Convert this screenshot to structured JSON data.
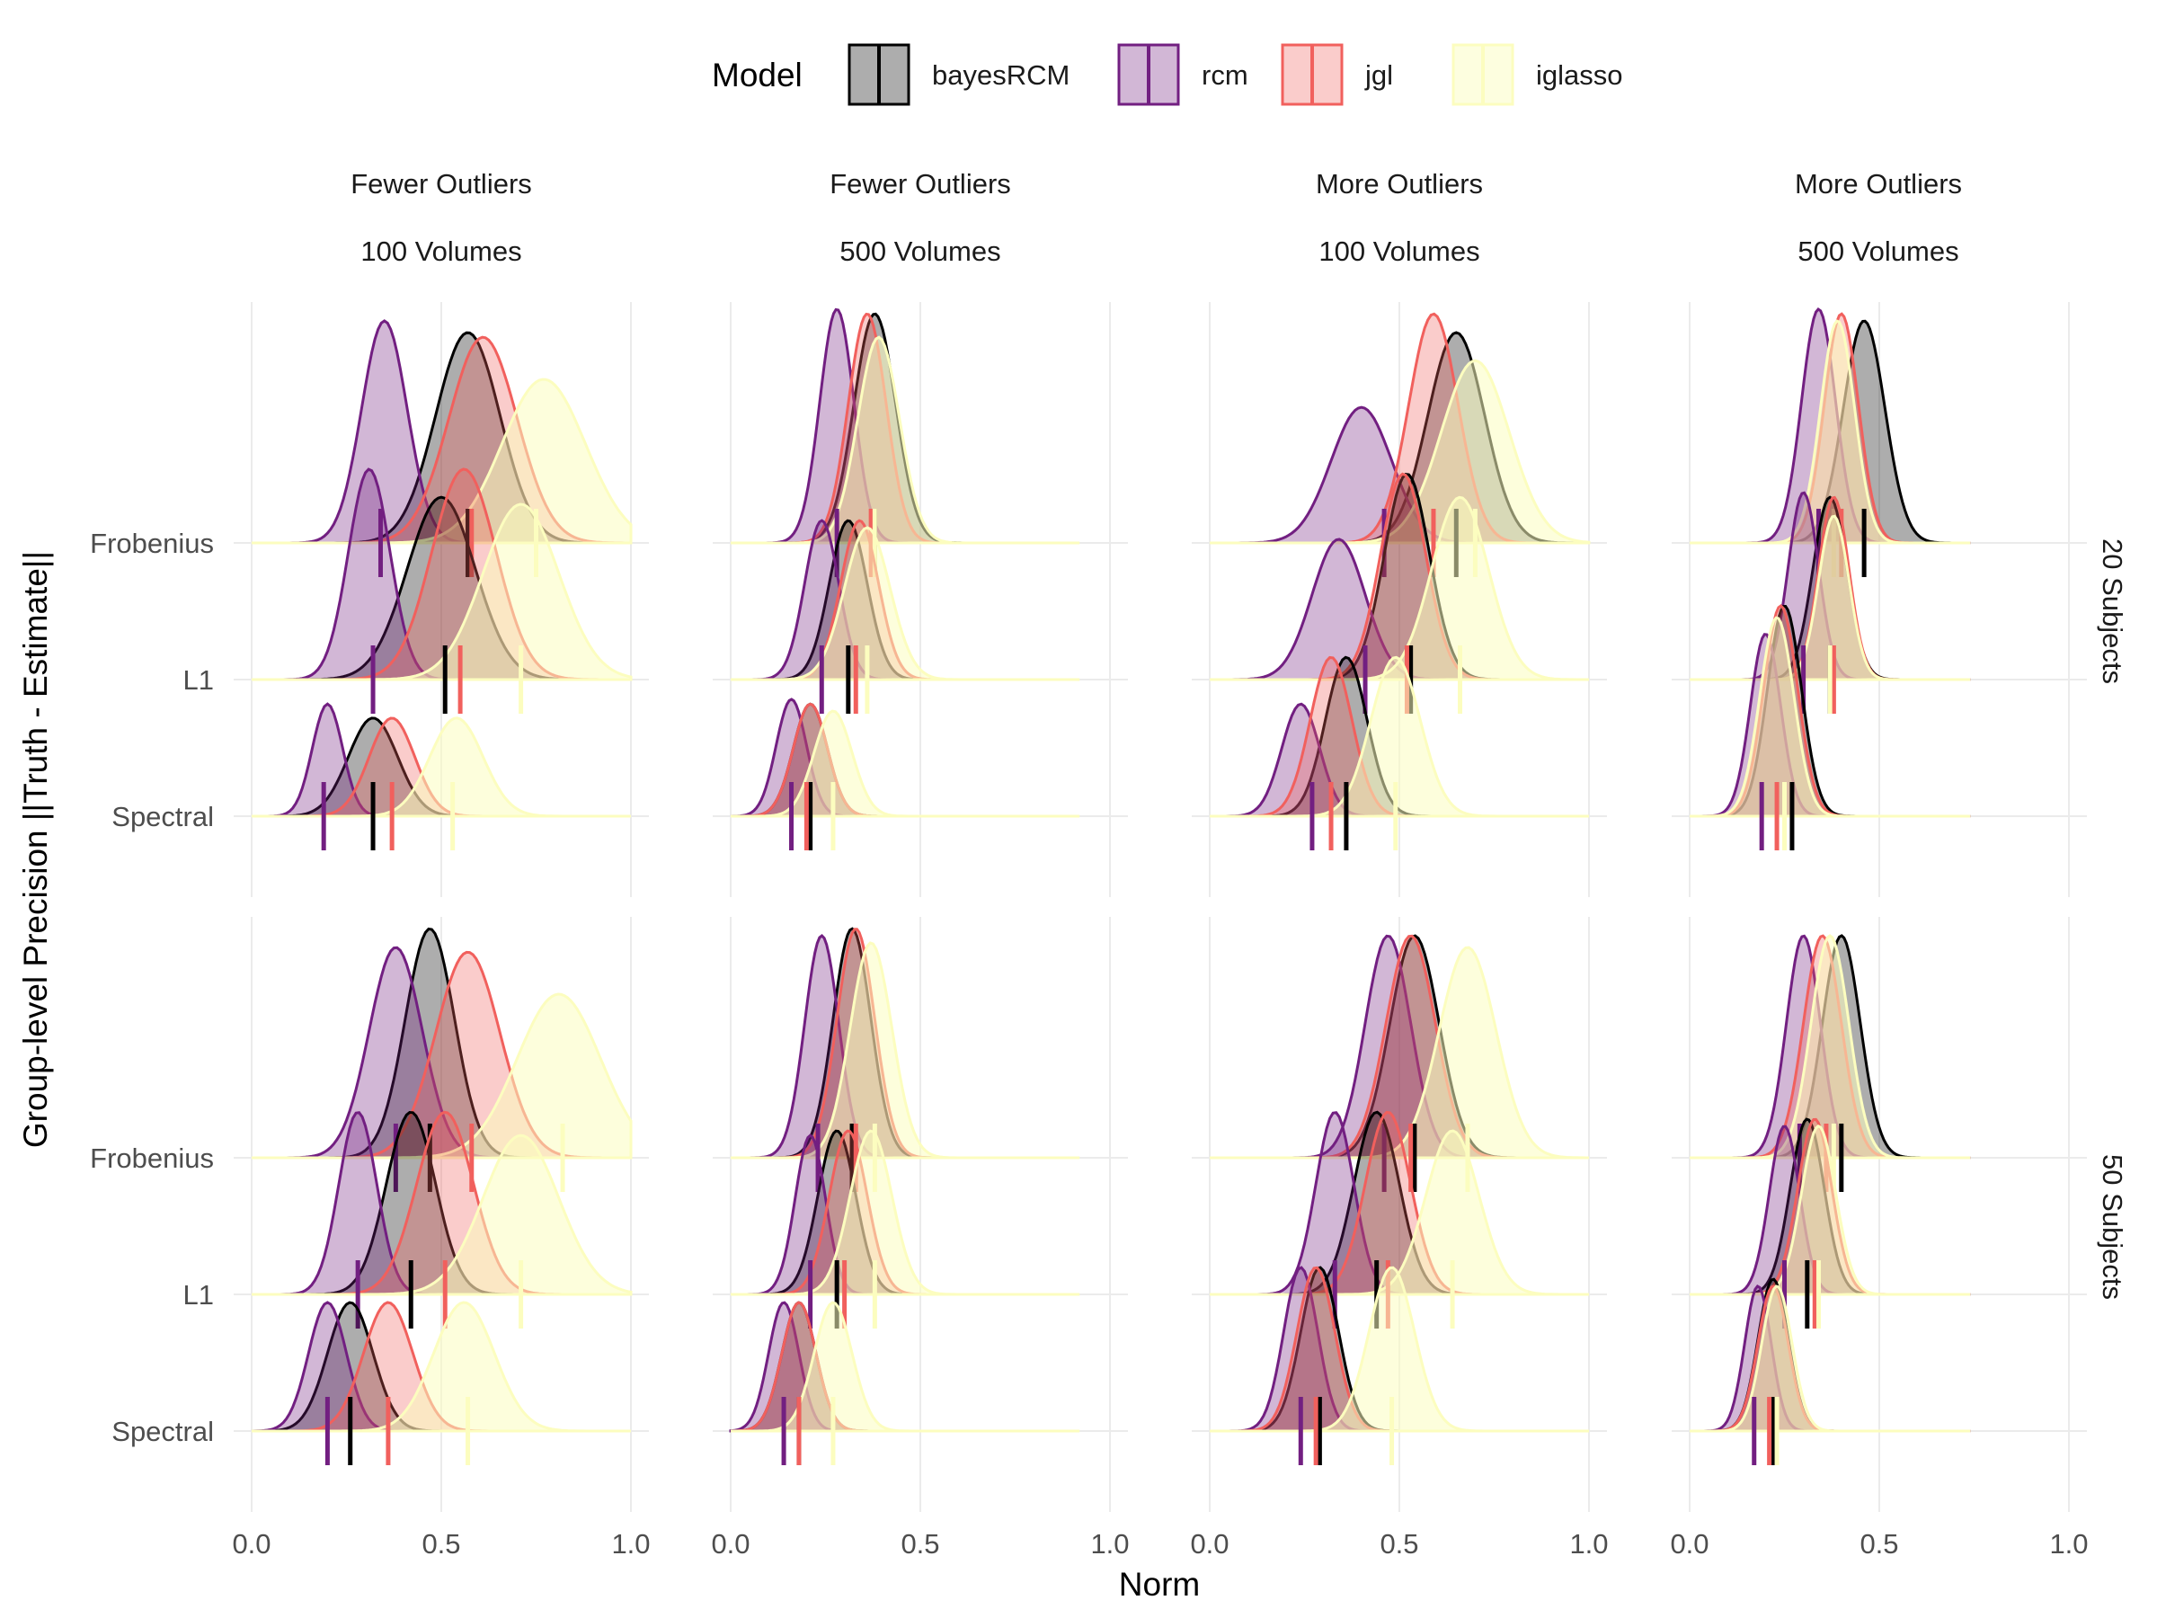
{
  "legend": {
    "title": "Model",
    "items": [
      {
        "label": "bayesRCM",
        "fill": "#000000",
        "stroke": "#000000"
      },
      {
        "label": "rcm",
        "fill": "#721F81",
        "stroke": "#721F81"
      },
      {
        "label": "jgl",
        "fill": "#F1605D",
        "stroke": "#F1605D"
      },
      {
        "label": "iglasso",
        "fill": "#FCFDBF",
        "stroke": "#FCFDBF"
      }
    ]
  },
  "axes": {
    "x_title": "Norm",
    "y_title": "Group-level Precision ||Truth - Estimate||",
    "x_ticks": [
      "0.0",
      "0.5",
      "1.0"
    ],
    "y_ticks": [
      "Frobenius",
      "L1",
      "Spectral"
    ]
  },
  "facets": {
    "columns": [
      {
        "line1": "Fewer Outliers",
        "line2": "100 Volumes"
      },
      {
        "line1": "Fewer Outliers",
        "line2": "500 Volumes"
      },
      {
        "line1": "More Outliers",
        "line2": "100 Volumes"
      },
      {
        "line1": "More Outliers",
        "line2": "500 Volumes"
      }
    ],
    "rows": [
      "20 Subjects",
      "50 Subjects"
    ]
  },
  "chart_data": {
    "type": "ridgeline",
    "title": "",
    "xlabel": "Norm",
    "ylabel": "Group-level Precision ||Truth - Estimate||",
    "xlim": [
      0,
      1
    ],
    "x_ticks": [
      0.0,
      0.5,
      1.0
    ],
    "categories": [
      "Frobenius",
      "L1",
      "Spectral"
    ],
    "grid": true,
    "legend_position": "top",
    "series_names": [
      "bayesRCM",
      "rcm",
      "jgl",
      "iglasso"
    ],
    "colors": {
      "bayesRCM": "#000000",
      "rcm": "#721F81",
      "jgl": "#F1605D",
      "iglasso": "#FCFDBF"
    },
    "panels": [
      {
        "row": "20 Subjects",
        "col": "Fewer Outliers / 100 Volumes",
        "densities": {
          "Frobenius": {
            "bayesRCM": {
              "peak": 0.57,
              "sd": 0.085,
              "median": 0.57,
              "height": 0.9
            },
            "rcm": {
              "peak": 0.35,
              "sd": 0.06,
              "median": 0.34,
              "height": 0.95
            },
            "jgl": {
              "peak": 0.61,
              "sd": 0.09,
              "median": 0.58,
              "height": 0.88
            },
            "iglasso": {
              "peak": 0.77,
              "sd": 0.11,
              "median": 0.75,
              "height": 0.7
            }
          },
          "L1": {
            "bayesRCM": {
              "peak": 0.5,
              "sd": 0.09,
              "median": 0.51,
              "height": 0.78
            },
            "rcm": {
              "peak": 0.31,
              "sd": 0.055,
              "median": 0.32,
              "height": 0.9
            },
            "jgl": {
              "peak": 0.56,
              "sd": 0.085,
              "median": 0.55,
              "height": 0.9
            },
            "iglasso": {
              "peak": 0.71,
              "sd": 0.1,
              "median": 0.71,
              "height": 0.75
            }
          },
          "Spectral": {
            "bayesRCM": {
              "peak": 0.32,
              "sd": 0.065,
              "median": 0.32,
              "height": 0.42
            },
            "rcm": {
              "peak": 0.2,
              "sd": 0.04,
              "median": 0.19,
              "height": 0.48
            },
            "jgl": {
              "peak": 0.37,
              "sd": 0.06,
              "median": 0.37,
              "height": 0.42
            },
            "iglasso": {
              "peak": 0.54,
              "sd": 0.07,
              "median": 0.53,
              "height": 0.42
            }
          }
        }
      },
      {
        "row": "20 Subjects",
        "col": "Fewer Outliers / 500 Volumes",
        "densities": {
          "Frobenius": {
            "bayesRCM": {
              "peak": 0.38,
              "sd": 0.055,
              "median": 0.38,
              "height": 0.98
            },
            "rcm": {
              "peak": 0.28,
              "sd": 0.045,
              "median": 0.28,
              "height": 1.0
            },
            "jgl": {
              "peak": 0.36,
              "sd": 0.05,
              "median": 0.37,
              "height": 0.98
            },
            "iglasso": {
              "peak": 0.39,
              "sd": 0.055,
              "median": 0.38,
              "height": 0.88
            }
          },
          "L1": {
            "bayesRCM": {
              "peak": 0.31,
              "sd": 0.05,
              "median": 0.31,
              "height": 0.68
            },
            "rcm": {
              "peak": 0.24,
              "sd": 0.045,
              "median": 0.24,
              "height": 0.68
            },
            "jgl": {
              "peak": 0.34,
              "sd": 0.05,
              "median": 0.33,
              "height": 0.68
            },
            "iglasso": {
              "peak": 0.36,
              "sd": 0.06,
              "median": 0.36,
              "height": 0.65
            }
          },
          "Spectral": {
            "bayesRCM": {
              "peak": 0.21,
              "sd": 0.045,
              "median": 0.21,
              "height": 0.48
            },
            "rcm": {
              "peak": 0.16,
              "sd": 0.04,
              "median": 0.16,
              "height": 0.5
            },
            "jgl": {
              "peak": 0.21,
              "sd": 0.045,
              "median": 0.2,
              "height": 0.48
            },
            "iglasso": {
              "peak": 0.27,
              "sd": 0.05,
              "median": 0.27,
              "height": 0.45
            }
          }
        }
      },
      {
        "row": "20 Subjects",
        "col": "More Outliers / 100 Volumes",
        "densities": {
          "Frobenius": {
            "bayesRCM": {
              "peak": 0.65,
              "sd": 0.075,
              "median": 0.65,
              "height": 0.9
            },
            "rcm": {
              "peak": 0.4,
              "sd": 0.08,
              "median": 0.46,
              "height": 0.58
            },
            "jgl": {
              "peak": 0.59,
              "sd": 0.065,
              "median": 0.59,
              "height": 0.98
            },
            "iglasso": {
              "peak": 0.7,
              "sd": 0.09,
              "median": 0.7,
              "height": 0.78
            }
          },
          "L1": {
            "bayesRCM": {
              "peak": 0.52,
              "sd": 0.06,
              "median": 0.53,
              "height": 0.88
            },
            "rcm": {
              "peak": 0.34,
              "sd": 0.07,
              "median": 0.41,
              "height": 0.6
            },
            "jgl": {
              "peak": 0.51,
              "sd": 0.06,
              "median": 0.52,
              "height": 0.88
            },
            "iglasso": {
              "peak": 0.66,
              "sd": 0.075,
              "median": 0.66,
              "height": 0.78
            }
          },
          "Spectral": {
            "bayesRCM": {
              "peak": 0.36,
              "sd": 0.055,
              "median": 0.36,
              "height": 0.68
            },
            "rcm": {
              "peak": 0.24,
              "sd": 0.05,
              "median": 0.27,
              "height": 0.48
            },
            "jgl": {
              "peak": 0.32,
              "sd": 0.055,
              "median": 0.32,
              "height": 0.68
            },
            "iglasso": {
              "peak": 0.49,
              "sd": 0.065,
              "median": 0.49,
              "height": 0.68
            }
          }
        }
      },
      {
        "row": "20 Subjects",
        "col": "More Outliers / 500 Volumes",
        "densities": {
          "Frobenius": {
            "bayesRCM": {
              "peak": 0.46,
              "sd": 0.055,
              "median": 0.46,
              "height": 0.95
            },
            "rcm": {
              "peak": 0.34,
              "sd": 0.045,
              "median": 0.34,
              "height": 1.0
            },
            "jgl": {
              "peak": 0.4,
              "sd": 0.045,
              "median": 0.4,
              "height": 0.98
            },
            "iglasso": {
              "peak": 0.39,
              "sd": 0.045,
              "median": 0.38,
              "height": 0.95
            }
          },
          "L1": {
            "bayesRCM": {
              "peak": 0.37,
              "sd": 0.045,
              "median": 0.37,
              "height": 0.78
            },
            "rcm": {
              "peak": 0.3,
              "sd": 0.04,
              "median": 0.3,
              "height": 0.8
            },
            "jgl": {
              "peak": 0.38,
              "sd": 0.04,
              "median": 0.38,
              "height": 0.78
            },
            "iglasso": {
              "peak": 0.38,
              "sd": 0.04,
              "median": 0.37,
              "height": 0.7
            }
          },
          "Spectral": {
            "bayesRCM": {
              "peak": 0.25,
              "sd": 0.045,
              "median": 0.27,
              "height": 0.9
            },
            "rcm": {
              "peak": 0.2,
              "sd": 0.04,
              "median": 0.19,
              "height": 0.78
            },
            "jgl": {
              "peak": 0.24,
              "sd": 0.045,
              "median": 0.23,
              "height": 0.9
            },
            "iglasso": {
              "peak": 0.23,
              "sd": 0.045,
              "median": 0.25,
              "height": 0.85
            }
          }
        }
      },
      {
        "row": "50 Subjects",
        "col": "Fewer Outliers / 100 Volumes",
        "densities": {
          "Frobenius": {
            "bayesRCM": {
              "peak": 0.47,
              "sd": 0.065,
              "median": 0.47,
              "height": 0.98
            },
            "rcm": {
              "peak": 0.38,
              "sd": 0.07,
              "median": 0.38,
              "height": 0.9
            },
            "jgl": {
              "peak": 0.57,
              "sd": 0.085,
              "median": 0.58,
              "height": 0.88
            },
            "iglasso": {
              "peak": 0.81,
              "sd": 0.11,
              "median": 0.82,
              "height": 0.7
            }
          },
          "L1": {
            "bayesRCM": {
              "peak": 0.42,
              "sd": 0.065,
              "median": 0.42,
              "height": 0.78
            },
            "rcm": {
              "peak": 0.28,
              "sd": 0.05,
              "median": 0.28,
              "height": 0.78
            },
            "jgl": {
              "peak": 0.51,
              "sd": 0.075,
              "median": 0.51,
              "height": 0.78
            },
            "iglasso": {
              "peak": 0.71,
              "sd": 0.1,
              "median": 0.71,
              "height": 0.68
            }
          },
          "Spectral": {
            "bayesRCM": {
              "peak": 0.26,
              "sd": 0.06,
              "median": 0.26,
              "height": 0.55
            },
            "rcm": {
              "peak": 0.2,
              "sd": 0.05,
              "median": 0.2,
              "height": 0.55
            },
            "jgl": {
              "peak": 0.36,
              "sd": 0.065,
              "median": 0.36,
              "height": 0.55
            },
            "iglasso": {
              "peak": 0.56,
              "sd": 0.08,
              "median": 0.57,
              "height": 0.55
            }
          }
        }
      },
      {
        "row": "50 Subjects",
        "col": "Fewer Outliers / 500 Volumes",
        "densities": {
          "Frobenius": {
            "bayesRCM": {
              "peak": 0.32,
              "sd": 0.05,
              "median": 0.32,
              "height": 0.98
            },
            "rcm": {
              "peak": 0.24,
              "sd": 0.045,
              "median": 0.23,
              "height": 0.95
            },
            "jgl": {
              "peak": 0.33,
              "sd": 0.05,
              "median": 0.33,
              "height": 0.98
            },
            "iglasso": {
              "peak": 0.37,
              "sd": 0.055,
              "median": 0.38,
              "height": 0.92
            }
          },
          "L1": {
            "bayesRCM": {
              "peak": 0.28,
              "sd": 0.05,
              "median": 0.28,
              "height": 0.7
            },
            "rcm": {
              "peak": 0.21,
              "sd": 0.04,
              "median": 0.21,
              "height": 0.68
            },
            "jgl": {
              "peak": 0.31,
              "sd": 0.05,
              "median": 0.3,
              "height": 0.7
            },
            "iglasso": {
              "peak": 0.37,
              "sd": 0.055,
              "median": 0.38,
              "height": 0.7
            }
          },
          "Spectral": {
            "bayesRCM": {
              "peak": 0.18,
              "sd": 0.045,
              "median": 0.18,
              "height": 0.55
            },
            "rcm": {
              "peak": 0.14,
              "sd": 0.04,
              "median": 0.14,
              "height": 0.55
            },
            "jgl": {
              "peak": 0.18,
              "sd": 0.045,
              "median": 0.18,
              "height": 0.55
            },
            "iglasso": {
              "peak": 0.27,
              "sd": 0.05,
              "median": 0.27,
              "height": 0.55
            }
          }
        }
      },
      {
        "row": "50 Subjects",
        "col": "More Outliers / 100 Volumes",
        "densities": {
          "Frobenius": {
            "bayesRCM": {
              "peak": 0.54,
              "sd": 0.065,
              "median": 0.54,
              "height": 0.95
            },
            "rcm": {
              "peak": 0.47,
              "sd": 0.06,
              "median": 0.46,
              "height": 0.95
            },
            "jgl": {
              "peak": 0.53,
              "sd": 0.065,
              "median": 0.53,
              "height": 0.95
            },
            "iglasso": {
              "peak": 0.68,
              "sd": 0.075,
              "median": 0.68,
              "height": 0.9
            }
          },
          "L1": {
            "bayesRCM": {
              "peak": 0.44,
              "sd": 0.06,
              "median": 0.44,
              "height": 0.78
            },
            "rcm": {
              "peak": 0.33,
              "sd": 0.05,
              "median": 0.33,
              "height": 0.78
            },
            "jgl": {
              "peak": 0.47,
              "sd": 0.06,
              "median": 0.47,
              "height": 0.78
            },
            "iglasso": {
              "peak": 0.64,
              "sd": 0.07,
              "median": 0.64,
              "height": 0.7
            }
          },
          "Spectral": {
            "bayesRCM": {
              "peak": 0.29,
              "sd": 0.05,
              "median": 0.29,
              "height": 0.7
            },
            "rcm": {
              "peak": 0.24,
              "sd": 0.045,
              "median": 0.24,
              "height": 0.7
            },
            "jgl": {
              "peak": 0.28,
              "sd": 0.05,
              "median": 0.28,
              "height": 0.7
            },
            "iglasso": {
              "peak": 0.48,
              "sd": 0.06,
              "median": 0.48,
              "height": 0.7
            }
          }
        }
      },
      {
        "row": "50 Subjects",
        "col": "More Outliers / 500 Volumes",
        "densities": {
          "Frobenius": {
            "bayesRCM": {
              "peak": 0.4,
              "sd": 0.05,
              "median": 0.4,
              "height": 0.95
            },
            "rcm": {
              "peak": 0.3,
              "sd": 0.045,
              "median": 0.29,
              "height": 0.95
            },
            "jgl": {
              "peak": 0.35,
              "sd": 0.05,
              "median": 0.36,
              "height": 0.95
            },
            "iglasso": {
              "peak": 0.37,
              "sd": 0.05,
              "median": 0.38,
              "height": 0.95
            }
          },
          "L1": {
            "bayesRCM": {
              "peak": 0.31,
              "sd": 0.045,
              "median": 0.31,
              "height": 0.75
            },
            "rcm": {
              "peak": 0.25,
              "sd": 0.04,
              "median": 0.25,
              "height": 0.72
            },
            "jgl": {
              "peak": 0.33,
              "sd": 0.045,
              "median": 0.33,
              "height": 0.75
            },
            "iglasso": {
              "peak": 0.34,
              "sd": 0.045,
              "median": 0.34,
              "height": 0.72
            }
          },
          "Spectral": {
            "bayesRCM": {
              "peak": 0.22,
              "sd": 0.04,
              "median": 0.22,
              "height": 0.65
            },
            "rcm": {
              "peak": 0.18,
              "sd": 0.035,
              "median": 0.17,
              "height": 0.62
            },
            "jgl": {
              "peak": 0.22,
              "sd": 0.04,
              "median": 0.21,
              "height": 0.62
            },
            "iglasso": {
              "peak": 0.23,
              "sd": 0.04,
              "median": 0.23,
              "height": 0.62
            }
          }
        }
      }
    ]
  }
}
